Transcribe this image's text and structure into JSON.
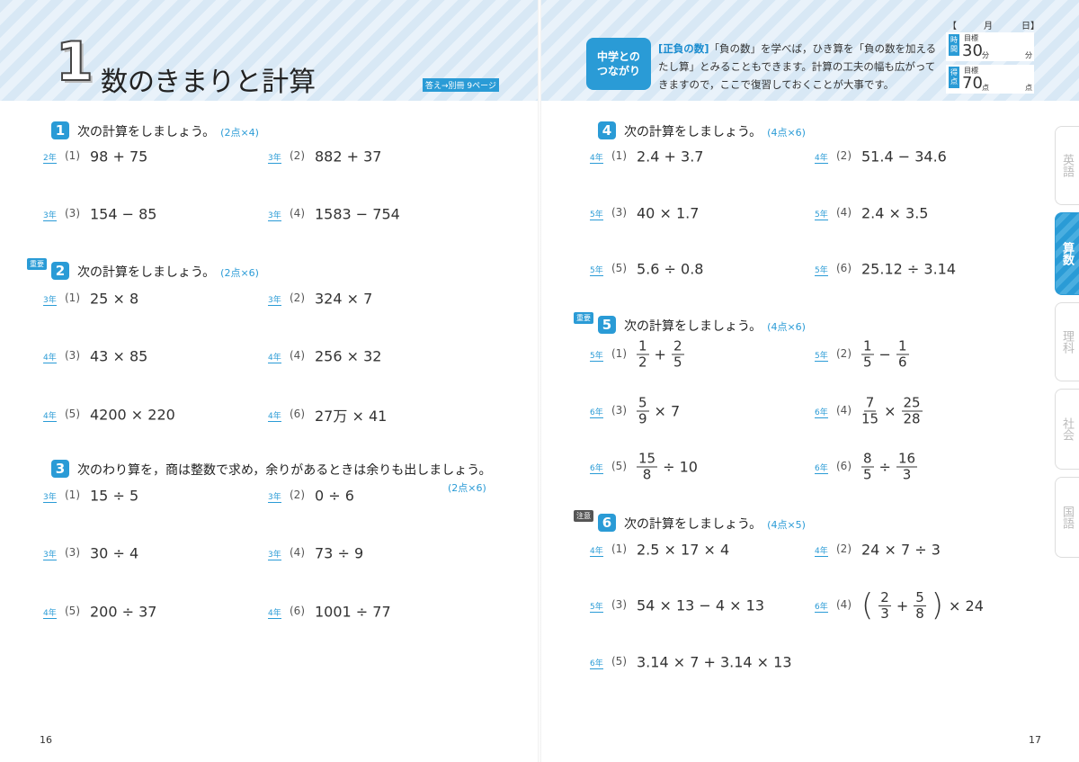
{
  "header": {
    "number": "1",
    "title": "数のきまりと計算",
    "answer_ref": "答え→別冊 9ページ",
    "connection": {
      "label_lines": [
        "中学との",
        "つながり"
      ],
      "keyword": "[正負の数]",
      "text": "「負の数」を学べば，ひき算を「負の数を加えるたし算」とみることもできます。計算の工夫の幅も広がってきますので，ここで復習しておくことが大事です。"
    },
    "record": {
      "open": "【",
      "month": "月",
      "day": "日】",
      "time_label": "時間",
      "time_goal_label": "目標",
      "time_goal": "30",
      "time_unit": "分",
      "time_unit_blank": "分",
      "score_label": "得点",
      "score_goal_label": "目標",
      "score_goal": "70",
      "score_unit": "点",
      "score_unit_blank": "点"
    }
  },
  "tabs": [
    "英語",
    "算数",
    "理科",
    "社会",
    "国語"
  ],
  "sections": [
    {
      "number": "1",
      "instruction": "次の計算をしましょう。",
      "points": "(2点×4)",
      "problems": [
        {
          "grade": "2年",
          "index": "(1)",
          "expr": [
            "98 + 75"
          ]
        },
        {
          "grade": "3年",
          "index": "(2)",
          "expr": [
            "882 + 37"
          ]
        },
        {
          "grade": "3年",
          "index": "(3)",
          "expr": [
            "154 − 85"
          ]
        },
        {
          "grade": "3年",
          "index": "(4)",
          "expr": [
            "1583 − 754"
          ]
        }
      ]
    },
    {
      "badge": "重要",
      "number": "2",
      "instruction": "次の計算をしましょう。",
      "points": "(2点×6)",
      "problems": [
        {
          "grade": "3年",
          "index": "(1)",
          "expr": [
            "25 × 8"
          ]
        },
        {
          "grade": "3年",
          "index": "(2)",
          "expr": [
            "324 × 7"
          ]
        },
        {
          "grade": "4年",
          "index": "(3)",
          "expr": [
            "43 × 85"
          ]
        },
        {
          "grade": "4年",
          "index": "(4)",
          "expr": [
            "256 × 32"
          ]
        },
        {
          "grade": "4年",
          "index": "(5)",
          "expr": [
            "4200 × 220"
          ]
        },
        {
          "grade": "4年",
          "index": "(6)",
          "expr": [
            "27万 × 41"
          ]
        }
      ]
    },
    {
      "number": "3",
      "instruction": "次のわり算を，商は整数で求め，余りがあるときは余りも出しましょう。",
      "points": "(2点×6)",
      "problems": [
        {
          "grade": "3年",
          "index": "(1)",
          "expr": [
            "15 ÷ 5"
          ]
        },
        {
          "grade": "3年",
          "index": "(2)",
          "expr": [
            "0 ÷ 6"
          ]
        },
        {
          "grade": "3年",
          "index": "(3)",
          "expr": [
            "30 ÷ 4"
          ]
        },
        {
          "grade": "3年",
          "index": "(4)",
          "expr": [
            "73 ÷ 9"
          ]
        },
        {
          "grade": "4年",
          "index": "(5)",
          "expr": [
            "200 ÷ 37"
          ]
        },
        {
          "grade": "4年",
          "index": "(6)",
          "expr": [
            "1001 ÷ 77"
          ]
        }
      ]
    },
    {
      "number": "4",
      "instruction": "次の計算をしましょう。",
      "points": "(4点×6)",
      "problems": [
        {
          "grade": "4年",
          "index": "(1)",
          "expr": [
            "2.4 + 3.7"
          ]
        },
        {
          "grade": "4年",
          "index": "(2)",
          "expr": [
            "51.4 − 34.6"
          ]
        },
        {
          "grade": "5年",
          "index": "(3)",
          "expr": [
            "40 × 1.7"
          ]
        },
        {
          "grade": "5年",
          "index": "(4)",
          "expr": [
            "2.4 × 3.5"
          ]
        },
        {
          "grade": "5年",
          "index": "(5)",
          "expr": [
            "5.6 ÷ 0.8"
          ]
        },
        {
          "grade": "5年",
          "index": "(6)",
          "expr": [
            "25.12 ÷ 3.14"
          ]
        }
      ]
    },
    {
      "badge": "重要",
      "number": "5",
      "instruction": "次の計算をしましょう。",
      "points": "(4点×6)",
      "problems": [
        {
          "grade": "5年",
          "index": "(1)",
          "expr": [
            {
              "num": "1",
              "den": "2"
            },
            "+",
            {
              "num": "2",
              "den": "5"
            }
          ]
        },
        {
          "grade": "5年",
          "index": "(2)",
          "expr": [
            {
              "num": "1",
              "den": "5"
            },
            "−",
            {
              "num": "1",
              "den": "6"
            }
          ]
        },
        {
          "grade": "6年",
          "index": "(3)",
          "expr": [
            {
              "num": "5",
              "den": "9"
            },
            "× 7"
          ]
        },
        {
          "grade": "6年",
          "index": "(4)",
          "expr": [
            {
              "num": "7",
              "den": "15"
            },
            "×",
            {
              "num": "25",
              "den": "28"
            }
          ]
        },
        {
          "grade": "6年",
          "index": "(5)",
          "expr": [
            {
              "num": "15",
              "den": "8"
            },
            "÷ 10"
          ]
        },
        {
          "grade": "6年",
          "index": "(6)",
          "expr": [
            {
              "num": "8",
              "den": "5"
            },
            "÷",
            {
              "num": "16",
              "den": "3"
            }
          ]
        }
      ]
    },
    {
      "badge": "注意",
      "number": "6",
      "instruction": "次の計算をしましょう。",
      "points": "(4点×5)",
      "problems": [
        {
          "grade": "4年",
          "index": "(1)",
          "expr": [
            "2.5 × 17 × 4"
          ]
        },
        {
          "grade": "4年",
          "index": "(2)",
          "expr": [
            "24 × 7 ÷ 3"
          ]
        },
        {
          "grade": "5年",
          "index": "(3)",
          "expr": [
            "54 × 13 − 4 × 13"
          ]
        },
        {
          "grade": "6年",
          "index": "(4)",
          "expr": [
            "(",
            {
              "num": "2",
              "den": "3"
            },
            "+",
            {
              "num": "5",
              "den": "8"
            },
            ")",
            "× 24"
          ]
        },
        {
          "grade": "6年",
          "index": "(5)",
          "expr": [
            "3.14 × 7 + 3.14 × 13"
          ]
        }
      ]
    }
  ],
  "page_numbers": [
    "16",
    "17"
  ]
}
